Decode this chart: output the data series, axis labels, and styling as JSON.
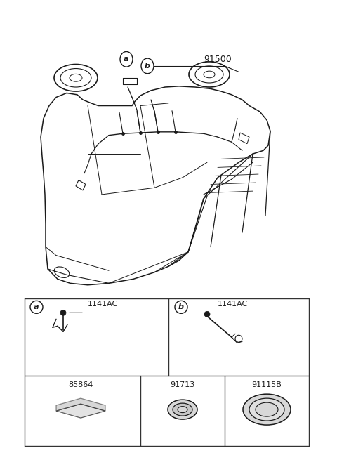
{
  "bg_color": "#ffffff",
  "fig_width": 4.8,
  "fig_height": 6.55,
  "dpi": 100,
  "car_label": "91500",
  "callout_a": "a",
  "callout_b": "b",
  "part_a_label": "1141AC",
  "part_b_label": "1141AC",
  "part_1_label": "85864",
  "part_2_label": "91713",
  "part_3_label": "91115B",
  "line_color": "#1a1a1a",
  "table_border_color": "#333333",
  "gray_fill": "#d8d8d8"
}
